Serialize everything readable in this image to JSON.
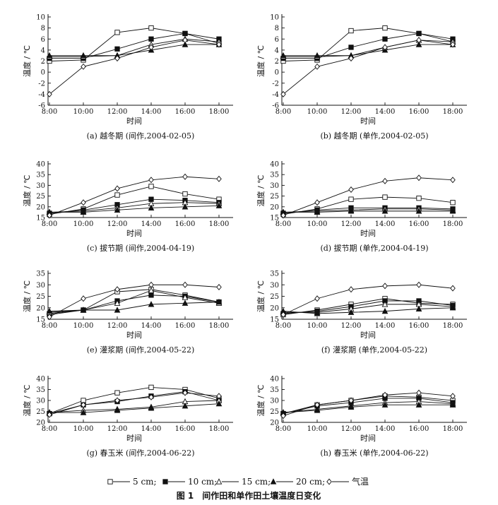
{
  "figure": {
    "caption": "图 1　间作田和单作田土壤温度日变化"
  },
  "legend": {
    "items": [
      {
        "marker": "open-square",
        "label": "5 cm;"
      },
      {
        "marker": "filled-square",
        "label": "10 cm;"
      },
      {
        "marker": "open-triangle",
        "label": "15 cm;"
      },
      {
        "marker": "filled-triangle",
        "label": "20 cm;"
      },
      {
        "marker": "open-diamond",
        "label": "气温"
      }
    ]
  },
  "chart_data": [
    {
      "type": "line",
      "panel": "a",
      "caption": "(a) 越冬期 (间作,2004-02-05)",
      "xlabel": "时间",
      "ylabel": "温度 / ℃",
      "categories": [
        "8:00",
        "10:00",
        "12:00",
        "14:00",
        "16:00",
        "18:00"
      ],
      "ylim": [
        -6,
        10
      ],
      "yticks": [
        -6,
        -4,
        -2,
        0,
        2,
        4,
        6,
        8,
        10
      ],
      "series": [
        {
          "name": "5 cm",
          "marker": "open-square",
          "values": [
            2.0,
            2.2,
            7.2,
            8.0,
            7.0,
            5.2
          ]
        },
        {
          "name": "10 cm",
          "marker": "filled-square",
          "values": [
            2.5,
            2.5,
            4.2,
            6.0,
            7.0,
            6.0
          ]
        },
        {
          "name": "15 cm",
          "marker": "open-triangle",
          "values": [
            2.8,
            2.8,
            3.0,
            5.0,
            6.0,
            5.5
          ]
        },
        {
          "name": "20 cm",
          "marker": "filled-triangle",
          "values": [
            3.0,
            3.0,
            3.0,
            4.0,
            5.0,
            5.0
          ]
        },
        {
          "name": "气温",
          "marker": "open-diamond",
          "values": [
            -4.0,
            1.0,
            2.5,
            4.5,
            5.8,
            5.0
          ]
        }
      ]
    },
    {
      "type": "line",
      "panel": "b",
      "caption": "(b) 越冬期 (单作,2004-02-05)",
      "xlabel": "时间",
      "ylabel": "温度 / ℃",
      "categories": [
        "8:00",
        "10:00",
        "12:00",
        "14:00",
        "16:00",
        "18:00"
      ],
      "ylim": [
        -6,
        10
      ],
      "yticks": [
        -6,
        -4,
        -2,
        0,
        2,
        4,
        6,
        8,
        10
      ],
      "series": [
        {
          "name": "5 cm",
          "marker": "open-square",
          "values": [
            2.0,
            2.2,
            7.5,
            8.0,
            7.0,
            5.5
          ]
        },
        {
          "name": "10 cm",
          "marker": "filled-square",
          "values": [
            2.5,
            2.5,
            4.5,
            6.0,
            7.0,
            6.0
          ]
        },
        {
          "name": "15 cm",
          "marker": "open-triangle",
          "values": [
            2.8,
            2.8,
            3.0,
            4.5,
            5.8,
            5.5
          ]
        },
        {
          "name": "20 cm",
          "marker": "filled-triangle",
          "values": [
            3.0,
            3.0,
            3.0,
            4.0,
            5.0,
            5.0
          ]
        },
        {
          "name": "气温",
          "marker": "open-diamond",
          "values": [
            -4.0,
            1.0,
            2.5,
            4.5,
            5.8,
            5.0
          ]
        }
      ]
    },
    {
      "type": "line",
      "panel": "c",
      "caption": "(c) 拔节期 (间作,2004-04-19)",
      "xlabel": "时间",
      "ylabel": "温度 / ℃",
      "categories": [
        "8:00",
        "10:00",
        "12:00",
        "14:00",
        "16:00",
        "18:00"
      ],
      "ylim": [
        15,
        40
      ],
      "yticks": [
        15,
        20,
        25,
        30,
        35,
        40
      ],
      "series": [
        {
          "name": "5 cm",
          "marker": "open-square",
          "values": [
            16.5,
            19.0,
            25.5,
            29.5,
            26.0,
            23.5
          ]
        },
        {
          "name": "10 cm",
          "marker": "filled-square",
          "values": [
            17.0,
            18.5,
            21.0,
            23.5,
            23.0,
            22.0
          ]
        },
        {
          "name": "15 cm",
          "marker": "open-triangle",
          "values": [
            17.5,
            18.0,
            19.5,
            21.5,
            22.0,
            21.5
          ]
        },
        {
          "name": "20 cm",
          "marker": "filled-triangle",
          "values": [
            17.5,
            17.5,
            18.5,
            19.5,
            20.0,
            20.5
          ]
        },
        {
          "name": "气温",
          "marker": "open-diamond",
          "values": [
            16.0,
            22.0,
            28.5,
            32.5,
            34.0,
            33.0
          ]
        }
      ]
    },
    {
      "type": "line",
      "panel": "d",
      "caption": "(d) 拔节期 (单作,2004-04-19)",
      "xlabel": "时间",
      "ylabel": "温度 / ℃",
      "categories": [
        "8:00",
        "10:00",
        "12:00",
        "14:00",
        "16:00",
        "18:00"
      ],
      "ylim": [
        15,
        40
      ],
      "yticks": [
        15,
        20,
        25,
        30,
        35,
        40
      ],
      "series": [
        {
          "name": "5 cm",
          "marker": "open-square",
          "values": [
            16.5,
            19.0,
            23.5,
            24.5,
            24.0,
            22.0
          ]
        },
        {
          "name": "10 cm",
          "marker": "filled-square",
          "values": [
            17.0,
            18.5,
            19.5,
            19.5,
            19.5,
            19.0
          ]
        },
        {
          "name": "15 cm",
          "marker": "open-triangle",
          "values": [
            17.5,
            18.0,
            18.5,
            19.0,
            19.0,
            18.5
          ]
        },
        {
          "name": "20 cm",
          "marker": "filled-triangle",
          "values": [
            17.5,
            17.5,
            18.0,
            18.0,
            18.0,
            18.0
          ]
        },
        {
          "name": "气温",
          "marker": "open-diamond",
          "values": [
            16.0,
            22.0,
            28.0,
            32.0,
            33.5,
            32.5
          ]
        }
      ]
    },
    {
      "type": "line",
      "panel": "e",
      "caption": "(e) 灌浆期 (间作,2004-05-22)",
      "xlabel": "时间",
      "ylabel": "温度 / ℃",
      "categories": [
        "8:00",
        "10:00",
        "12:00",
        "14:00",
        "16:00",
        "18:00"
      ],
      "ylim": [
        15,
        35
      ],
      "yticks": [
        15,
        20,
        25,
        30,
        35
      ],
      "series": [
        {
          "name": "5 cm",
          "marker": "open-square",
          "values": [
            17.0,
            19.0,
            27.0,
            28.0,
            25.5,
            22.5
          ]
        },
        {
          "name": "10 cm",
          "marker": "filled-square",
          "values": [
            17.5,
            19.0,
            23.0,
            25.5,
            25.0,
            22.5
          ]
        },
        {
          "name": "15 cm",
          "marker": "open-triangle",
          "values": [
            18.0,
            19.0,
            22.0,
            27.5,
            24.5,
            22.0
          ]
        },
        {
          "name": "20 cm",
          "marker": "filled-triangle",
          "values": [
            18.5,
            19.0,
            19.0,
            21.5,
            22.0,
            22.5
          ]
        },
        {
          "name": "气温",
          "marker": "open-diamond",
          "values": [
            16.0,
            24.0,
            28.0,
            30.0,
            30.0,
            29.0
          ]
        }
      ]
    },
    {
      "type": "line",
      "panel": "f",
      "caption": "(f) 灌浆期 (单作,2004-05-22)",
      "xlabel": "时间",
      "ylabel": "温度 / ℃",
      "categories": [
        "8:00",
        "10:00",
        "12:00",
        "14:00",
        "16:00",
        "18:00"
      ],
      "ylim": [
        15,
        35
      ],
      "yticks": [
        15,
        20,
        25,
        30,
        35
      ],
      "series": [
        {
          "name": "5 cm",
          "marker": "open-square",
          "values": [
            17.0,
            19.0,
            21.5,
            24.0,
            22.0,
            21.5
          ]
        },
        {
          "name": "10 cm",
          "marker": "filled-square",
          "values": [
            17.5,
            18.5,
            20.5,
            23.0,
            23.0,
            21.0
          ]
        },
        {
          "name": "15 cm",
          "marker": "open-triangle",
          "values": [
            18.0,
            18.0,
            19.5,
            21.5,
            21.5,
            20.5
          ]
        },
        {
          "name": "20 cm",
          "marker": "filled-triangle",
          "values": [
            18.5,
            17.5,
            18.0,
            18.5,
            19.5,
            20.0
          ]
        },
        {
          "name": "气温",
          "marker": "open-diamond",
          "values": [
            17.0,
            24.0,
            28.0,
            29.5,
            30.0,
            28.5
          ]
        }
      ]
    },
    {
      "type": "line",
      "panel": "g",
      "caption": "(g) 春玉米 (间作,2004-06-22)",
      "xlabel": "时间",
      "ylabel": "温度 / ℃",
      "categories": [
        "8:00",
        "10:00",
        "12:00",
        "14:00",
        "16:00",
        "18:00"
      ],
      "ylim": [
        20,
        40
      ],
      "yticks": [
        20,
        25,
        30,
        35,
        40
      ],
      "series": [
        {
          "name": "5 cm",
          "marker": "open-square",
          "values": [
            24.0,
            30.0,
            33.5,
            36.0,
            35.0,
            31.0
          ]
        },
        {
          "name": "10 cm",
          "marker": "filled-square",
          "values": [
            24.0,
            28.0,
            29.5,
            32.0,
            34.0,
            30.0
          ]
        },
        {
          "name": "15 cm",
          "marker": "open-triangle",
          "values": [
            24.5,
            25.5,
            26.0,
            27.0,
            29.5,
            30.0
          ]
        },
        {
          "name": "20 cm",
          "marker": "filled-triangle",
          "values": [
            24.5,
            24.5,
            25.5,
            26.5,
            27.5,
            28.5
          ]
        },
        {
          "name": "气温",
          "marker": "open-diamond",
          "values": [
            23.5,
            28.0,
            30.0,
            31.5,
            33.5,
            32.0
          ]
        }
      ]
    },
    {
      "type": "line",
      "panel": "h",
      "caption": "(h) 春玉米 (单作,2004-06-22)",
      "xlabel": "时间",
      "ylabel": "温度 / ℃",
      "categories": [
        "8:00",
        "10:00",
        "12:00",
        "14:00",
        "16:00",
        "18:00"
      ],
      "ylim": [
        20,
        40
      ],
      "yticks": [
        20,
        25,
        30,
        35,
        40
      ],
      "series": [
        {
          "name": "5 cm",
          "marker": "open-square",
          "values": [
            24.0,
            28.0,
            30.0,
            32.0,
            31.5,
            30.0
          ]
        },
        {
          "name": "10 cm",
          "marker": "filled-square",
          "values": [
            24.0,
            27.5,
            29.0,
            31.0,
            31.0,
            29.0
          ]
        },
        {
          "name": "15 cm",
          "marker": "open-triangle",
          "values": [
            24.5,
            26.0,
            27.5,
            29.0,
            29.5,
            28.5
          ]
        },
        {
          "name": "20 cm",
          "marker": "filled-triangle",
          "values": [
            24.5,
            25.5,
            27.0,
            28.0,
            28.0,
            28.0
          ]
        },
        {
          "name": "气温",
          "marker": "open-diamond",
          "values": [
            23.0,
            28.0,
            30.0,
            32.5,
            33.5,
            32.0
          ]
        }
      ]
    }
  ]
}
